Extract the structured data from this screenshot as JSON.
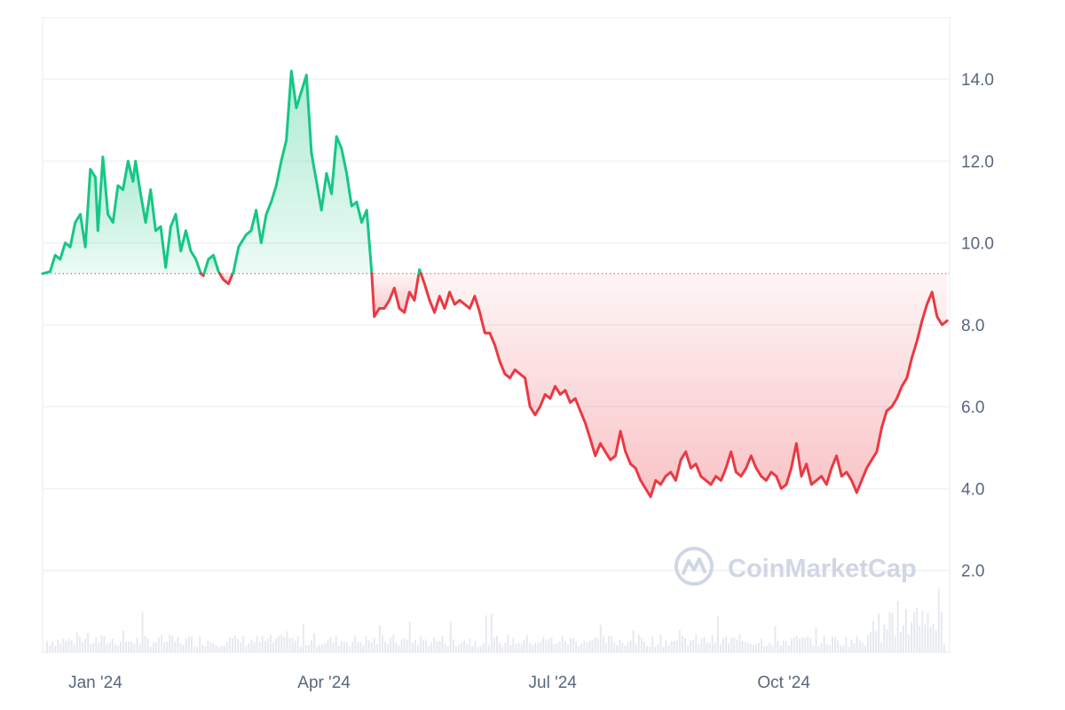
{
  "watermark": {
    "text": "CoinMarketCap"
  },
  "colors": {
    "up": "#16c784",
    "down": "#ea3943",
    "grid": "#eff2f5",
    "volume": "#e6e9ef",
    "baseline": "#ea3943"
  },
  "chart_data": {
    "type": "area",
    "title": "",
    "xlabel": "",
    "ylabel": "",
    "baseline": 9.25,
    "ylim": [
      0,
      15.5
    ],
    "xlim": [
      "2023-12-11",
      "2024-12-06"
    ],
    "grid": true,
    "y_axis_side": "right",
    "y_ticks": [
      {
        "value": 2,
        "label": "2.0"
      },
      {
        "value": 4,
        "label": "4.0"
      },
      {
        "value": 6,
        "label": "6.0"
      },
      {
        "value": 8,
        "label": "8.0"
      },
      {
        "value": 10,
        "label": "10.0"
      },
      {
        "value": 12,
        "label": "12.0"
      },
      {
        "value": 14,
        "label": "14.0"
      }
    ],
    "x_ticks": [
      {
        "value": "2024-01-01",
        "label": "Jan '24"
      },
      {
        "value": "2024-04-01",
        "label": "Apr '24"
      },
      {
        "value": "2024-07-01",
        "label": "Jul '24"
      },
      {
        "value": "2024-10-01",
        "label": "Oct '24"
      }
    ],
    "series": [
      {
        "type": "line",
        "values": [
          [
            "2023-12-11",
            9.25
          ],
          [
            "2023-12-14",
            9.3
          ],
          [
            "2023-12-16",
            9.7
          ],
          [
            "2023-12-18",
            9.6
          ],
          [
            "2023-12-20",
            10.0
          ],
          [
            "2023-12-22",
            9.9
          ],
          [
            "2023-12-24",
            10.5
          ],
          [
            "2023-12-26",
            10.7
          ],
          [
            "2023-12-28",
            9.9
          ],
          [
            "2023-12-30",
            11.8
          ],
          [
            "2024-01-01",
            11.6
          ],
          [
            "2024-01-02",
            10.3
          ],
          [
            "2024-01-04",
            12.1
          ],
          [
            "2024-01-06",
            10.7
          ],
          [
            "2024-01-08",
            10.5
          ],
          [
            "2024-01-10",
            11.4
          ],
          [
            "2024-01-12",
            11.3
          ],
          [
            "2024-01-14",
            12.0
          ],
          [
            "2024-01-16",
            11.5
          ],
          [
            "2024-01-17",
            12.0
          ],
          [
            "2024-01-19",
            11.2
          ],
          [
            "2024-01-21",
            10.5
          ],
          [
            "2024-01-23",
            11.3
          ],
          [
            "2024-01-25",
            10.3
          ],
          [
            "2024-01-27",
            10.4
          ],
          [
            "2024-01-29",
            9.4
          ],
          [
            "2024-01-31",
            10.4
          ],
          [
            "2024-02-02",
            10.7
          ],
          [
            "2024-02-04",
            9.8
          ],
          [
            "2024-02-06",
            10.3
          ],
          [
            "2024-02-08",
            9.8
          ],
          [
            "2024-02-10",
            9.6
          ],
          [
            "2024-02-12",
            9.25
          ],
          [
            "2024-02-13",
            9.2
          ],
          [
            "2024-02-15",
            9.6
          ],
          [
            "2024-02-17",
            9.7
          ],
          [
            "2024-02-19",
            9.3
          ],
          [
            "2024-02-21",
            9.1
          ],
          [
            "2024-02-23",
            9.0
          ],
          [
            "2024-02-25",
            9.3
          ],
          [
            "2024-02-27",
            9.9
          ],
          [
            "2024-03-01",
            10.2
          ],
          [
            "2024-03-03",
            10.3
          ],
          [
            "2024-03-05",
            10.8
          ],
          [
            "2024-03-07",
            10.0
          ],
          [
            "2024-03-09",
            10.7
          ],
          [
            "2024-03-11",
            11.0
          ],
          [
            "2024-03-13",
            11.4
          ],
          [
            "2024-03-15",
            12.0
          ],
          [
            "2024-03-17",
            12.5
          ],
          [
            "2024-03-19",
            14.2
          ],
          [
            "2024-03-21",
            13.3
          ],
          [
            "2024-03-23",
            13.7
          ],
          [
            "2024-03-25",
            14.1
          ],
          [
            "2024-03-27",
            12.2
          ],
          [
            "2024-03-29",
            11.5
          ],
          [
            "2024-03-31",
            10.8
          ],
          [
            "2024-04-02",
            11.7
          ],
          [
            "2024-04-04",
            11.2
          ],
          [
            "2024-04-06",
            12.6
          ],
          [
            "2024-04-08",
            12.3
          ],
          [
            "2024-04-10",
            11.7
          ],
          [
            "2024-04-12",
            10.9
          ],
          [
            "2024-04-14",
            11.0
          ],
          [
            "2024-04-16",
            10.5
          ],
          [
            "2024-04-18",
            10.8
          ],
          [
            "2024-04-20",
            9.25
          ],
          [
            "2024-04-21",
            8.2
          ],
          [
            "2024-04-23",
            8.4
          ],
          [
            "2024-04-25",
            8.4
          ],
          [
            "2024-04-27",
            8.6
          ],
          [
            "2024-04-29",
            8.9
          ],
          [
            "2024-05-01",
            8.4
          ],
          [
            "2024-05-03",
            8.3
          ],
          [
            "2024-05-05",
            8.8
          ],
          [
            "2024-05-07",
            8.6
          ],
          [
            "2024-05-09",
            9.35
          ],
          [
            "2024-05-11",
            9.0
          ],
          [
            "2024-05-13",
            8.6
          ],
          [
            "2024-05-15",
            8.3
          ],
          [
            "2024-05-17",
            8.7
          ],
          [
            "2024-05-19",
            8.4
          ],
          [
            "2024-05-21",
            8.8
          ],
          [
            "2024-05-23",
            8.5
          ],
          [
            "2024-05-25",
            8.6
          ],
          [
            "2024-05-27",
            8.5
          ],
          [
            "2024-05-29",
            8.4
          ],
          [
            "2024-05-31",
            8.7
          ],
          [
            "2024-06-02",
            8.3
          ],
          [
            "2024-06-04",
            7.8
          ],
          [
            "2024-06-06",
            7.8
          ],
          [
            "2024-06-08",
            7.5
          ],
          [
            "2024-06-10",
            7.1
          ],
          [
            "2024-06-12",
            6.8
          ],
          [
            "2024-06-14",
            6.7
          ],
          [
            "2024-06-16",
            6.9
          ],
          [
            "2024-06-18",
            6.8
          ],
          [
            "2024-06-20",
            6.7
          ],
          [
            "2024-06-22",
            6.0
          ],
          [
            "2024-06-24",
            5.8
          ],
          [
            "2024-06-26",
            6.0
          ],
          [
            "2024-06-28",
            6.3
          ],
          [
            "2024-06-30",
            6.2
          ],
          [
            "2024-07-02",
            6.5
          ],
          [
            "2024-07-04",
            6.3
          ],
          [
            "2024-07-06",
            6.4
          ],
          [
            "2024-07-08",
            6.1
          ],
          [
            "2024-07-10",
            6.2
          ],
          [
            "2024-07-12",
            5.9
          ],
          [
            "2024-07-14",
            5.6
          ],
          [
            "2024-07-16",
            5.2
          ],
          [
            "2024-07-18",
            4.8
          ],
          [
            "2024-07-20",
            5.1
          ],
          [
            "2024-07-22",
            4.9
          ],
          [
            "2024-07-24",
            4.7
          ],
          [
            "2024-07-26",
            4.8
          ],
          [
            "2024-07-28",
            5.4
          ],
          [
            "2024-07-30",
            4.9
          ],
          [
            "2024-08-01",
            4.6
          ],
          [
            "2024-08-03",
            4.5
          ],
          [
            "2024-08-05",
            4.2
          ],
          [
            "2024-08-07",
            4.0
          ],
          [
            "2024-08-09",
            3.8
          ],
          [
            "2024-08-11",
            4.2
          ],
          [
            "2024-08-13",
            4.1
          ],
          [
            "2024-08-15",
            4.3
          ],
          [
            "2024-08-17",
            4.4
          ],
          [
            "2024-08-19",
            4.2
          ],
          [
            "2024-08-21",
            4.7
          ],
          [
            "2024-08-23",
            4.9
          ],
          [
            "2024-08-25",
            4.5
          ],
          [
            "2024-08-27",
            4.6
          ],
          [
            "2024-08-29",
            4.3
          ],
          [
            "2024-08-31",
            4.2
          ],
          [
            "2024-09-02",
            4.1
          ],
          [
            "2024-09-04",
            4.3
          ],
          [
            "2024-09-06",
            4.2
          ],
          [
            "2024-09-08",
            4.5
          ],
          [
            "2024-09-10",
            4.9
          ],
          [
            "2024-09-12",
            4.4
          ],
          [
            "2024-09-14",
            4.3
          ],
          [
            "2024-09-16",
            4.5
          ],
          [
            "2024-09-18",
            4.8
          ],
          [
            "2024-09-20",
            4.5
          ],
          [
            "2024-09-22",
            4.3
          ],
          [
            "2024-09-24",
            4.2
          ],
          [
            "2024-09-26",
            4.4
          ],
          [
            "2024-09-28",
            4.3
          ],
          [
            "2024-09-30",
            4.0
          ],
          [
            "2024-10-02",
            4.1
          ],
          [
            "2024-10-04",
            4.5
          ],
          [
            "2024-10-06",
            5.1
          ],
          [
            "2024-10-08",
            4.3
          ],
          [
            "2024-10-10",
            4.6
          ],
          [
            "2024-10-12",
            4.1
          ],
          [
            "2024-10-14",
            4.2
          ],
          [
            "2024-10-16",
            4.3
          ],
          [
            "2024-10-18",
            4.1
          ],
          [
            "2024-10-20",
            4.5
          ],
          [
            "2024-10-22",
            4.8
          ],
          [
            "2024-10-24",
            4.3
          ],
          [
            "2024-10-26",
            4.4
          ],
          [
            "2024-10-28",
            4.2
          ],
          [
            "2024-10-30",
            3.9
          ],
          [
            "2024-11-01",
            4.2
          ],
          [
            "2024-11-03",
            4.5
          ],
          [
            "2024-11-05",
            4.7
          ],
          [
            "2024-11-07",
            4.9
          ],
          [
            "2024-11-09",
            5.5
          ],
          [
            "2024-11-11",
            5.9
          ],
          [
            "2024-11-13",
            6.0
          ],
          [
            "2024-11-15",
            6.2
          ],
          [
            "2024-11-17",
            6.5
          ],
          [
            "2024-11-19",
            6.7
          ],
          [
            "2024-11-21",
            7.2
          ],
          [
            "2024-11-23",
            7.6
          ],
          [
            "2024-11-25",
            8.1
          ],
          [
            "2024-11-27",
            8.5
          ],
          [
            "2024-11-29",
            8.8
          ],
          [
            "2024-12-01",
            8.2
          ],
          [
            "2024-12-03",
            8.0
          ],
          [
            "2024-12-05",
            8.1
          ]
        ]
      }
    ]
  }
}
